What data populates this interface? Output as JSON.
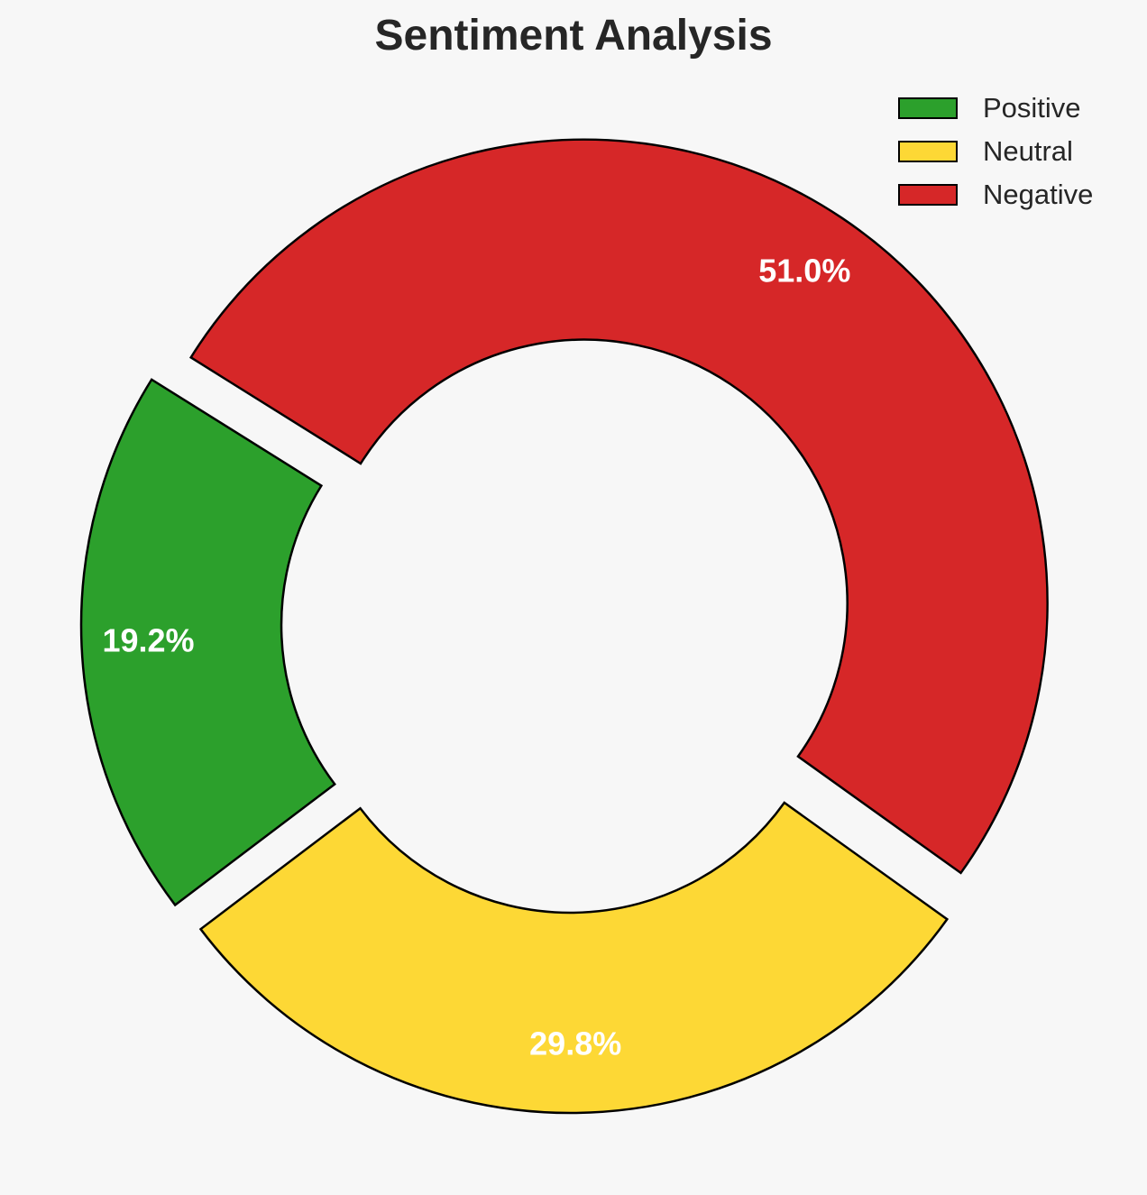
{
  "chart_data": {
    "type": "pie",
    "title": "Sentiment Analysis",
    "donut": true,
    "legend_position": "top-right",
    "slices": [
      {
        "label": "Positive",
        "value": 19.2,
        "display": "19.2%",
        "color": "#2ca02c"
      },
      {
        "label": "Neutral",
        "value": 29.8,
        "display": "29.8%",
        "color": "#fdd835"
      },
      {
        "label": "Negative",
        "value": 51.0,
        "display": "51.0%",
        "color": "#d62728"
      }
    ]
  }
}
